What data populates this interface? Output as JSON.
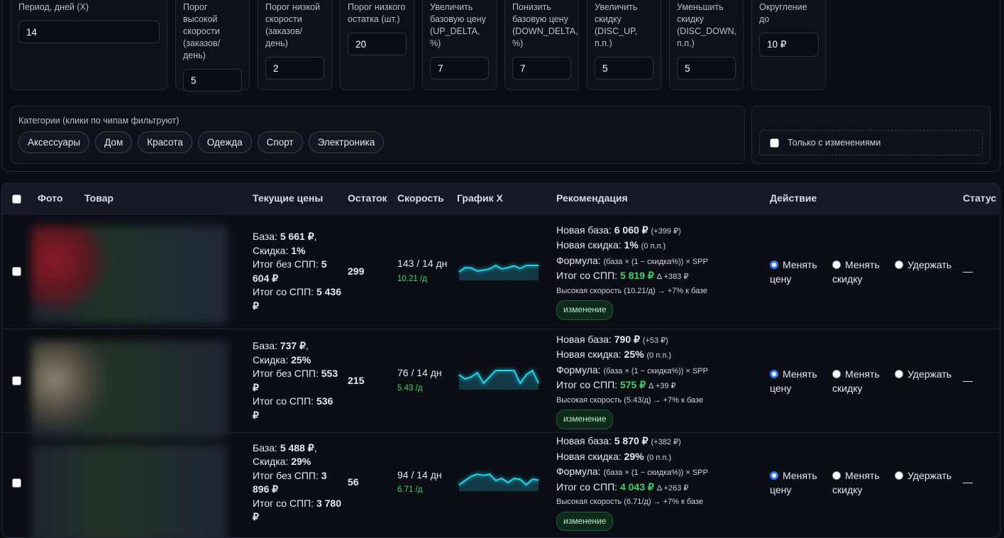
{
  "filters": [
    {
      "label": "Период, дней (X)",
      "value": "14"
    },
    {
      "label": "Порог высокой скорости (заказов/день)",
      "value": "5"
    },
    {
      "label": "Порог низкой скорости (заказов/день)",
      "value": "2"
    },
    {
      "label": "Порог низкого остатка (шт.)",
      "value": "20"
    },
    {
      "label": "Увеличить базовую цену (UP_DELTA, %)",
      "value": "7"
    },
    {
      "label": "Понизить базовую цену (DOWN_DELTA, %)",
      "value": "7"
    },
    {
      "label": "Увеличить скидку (DISC_UP, п.п.)",
      "value": "5"
    },
    {
      "label": "Уменьшить скидку (DISC_DOWN, п.п.)",
      "value": "5"
    }
  ],
  "rounding": {
    "label": "Округление до",
    "value": "10 ₽"
  },
  "categories": {
    "label": "Категории (клики по чипам фильтруют)",
    "chips": [
      "Аксессуары",
      "Дом",
      "Красота",
      "Одежда",
      "Спорт",
      "Электроника"
    ]
  },
  "only_changes": "Только с изменениями",
  "table": {
    "headers": [
      "Фото",
      "Товар",
      "Текущие цены",
      "Остаток",
      "Скорость",
      "График X",
      "Рекомендация",
      "Действие",
      "Статус"
    ],
    "labels": {
      "base": "База:",
      "discount": "Скидка:",
      "no_spp": "Итог без СПП:",
      "spp": "Итог со СПП:",
      "new_base": "Новая база:",
      "new_discount": "Новая скидка:",
      "formula": "Формула:",
      "new_spp": "Итог со СПП:"
    },
    "actions": [
      "Менять цену",
      "Менять скидку",
      "Удержать"
    ],
    "spark_ylim": [
      0,
      5
    ],
    "rows": [
      {
        "base": "5 661 ₽",
        "discount": "1%",
        "no_spp": "5 604 ₽",
        "spp": "5 436 ₽",
        "stock": 299,
        "speed": "143 / 14 дн",
        "rate": "10.21 /д",
        "spark": [
          2,
          3,
          2.9,
          2.2,
          2.4,
          2.7,
          3.5,
          2.7,
          3,
          3.4,
          2.8,
          3.5,
          3.5,
          3.5
        ],
        "new_base": "6 060 ₽",
        "new_base_delta": "(+399 ₽)",
        "new_discount": "1%",
        "new_discount_delta": "(0 п.п.)",
        "formula": "(база × (1 − скидка%)) × SPP",
        "new_spp": "5 819 ₽",
        "new_spp_delta": "Δ +383 ₽",
        "reason": "Высокая скорость (10.21/д) → +7% к базе",
        "badge": "изменение",
        "status": "—"
      },
      {
        "base": "737 ₽",
        "discount": "25%",
        "no_spp": "553 ₽",
        "spp": "536 ₽",
        "stock": 215,
        "speed": "76 / 14 дн",
        "rate": "5.43 /д",
        "spark": [
          3.5,
          2.5,
          3,
          4,
          1.5,
          3,
          4.5,
          4.5,
          4.5,
          4.5,
          1.5,
          3.5,
          4.5,
          1.5
        ],
        "new_base": "790 ₽",
        "new_base_delta": "(+53 ₽)",
        "new_discount": "25%",
        "new_discount_delta": "(0 п.п.)",
        "formula": "(база × (1 − скидка%)) × SPP",
        "new_spp": "575 ₽",
        "new_spp_delta": "Δ +39 ₽",
        "reason": "Высокая скорость (5.43/д) → +7% к базе",
        "badge": "изменение",
        "status": "—"
      },
      {
        "base": "5 488 ₽",
        "discount": "29%",
        "no_spp": "3 896 ₽",
        "spp": "3 780 ₽",
        "stock": 56,
        "speed": "94 / 14 дн",
        "rate": "6.71 /д",
        "spark": [
          1.5,
          2.5,
          3.5,
          4,
          3.7,
          4,
          2.5,
          3,
          2,
          3,
          2.8,
          1.5,
          2.8,
          2.6
        ],
        "new_base": "5 870 ₽",
        "new_base_delta": "(+382 ₽)",
        "new_discount": "29%",
        "new_discount_delta": "(0 п.п.)",
        "formula": "(база × (1 − скидка%)) × SPP",
        "new_spp": "4 043 ₽",
        "new_spp_delta": "Δ +263 ₽",
        "reason": "Высокая скорость (6.71/д) → +7% к базе",
        "badge": "изменение",
        "status": "—"
      }
    ]
  }
}
